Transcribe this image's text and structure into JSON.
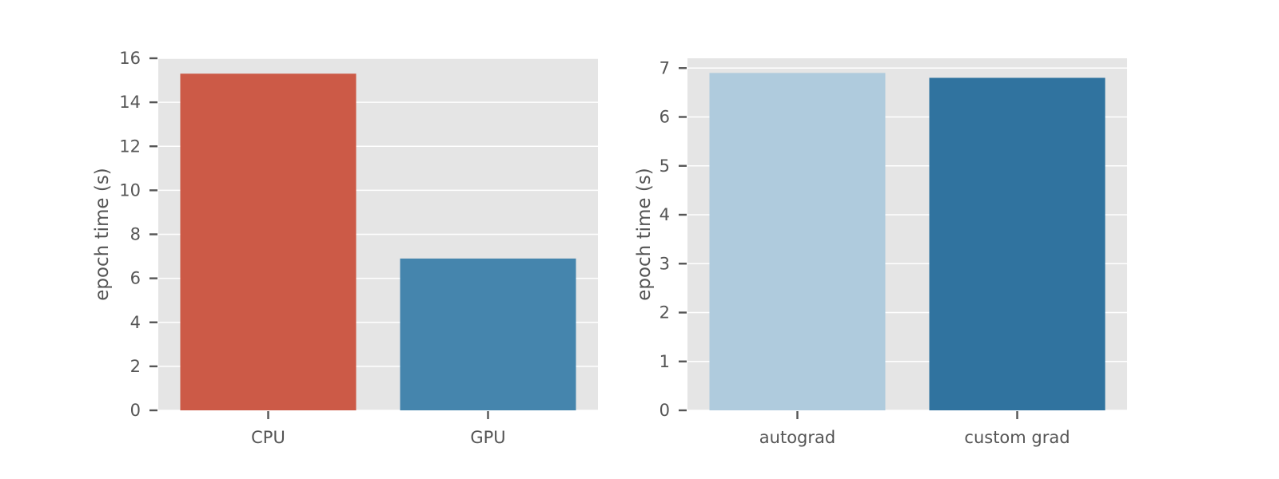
{
  "chart_data": [
    {
      "type": "bar",
      "categories": [
        "CPU",
        "GPU"
      ],
      "values": [
        15.3,
        6.9
      ],
      "colors": [
        "#cc5a47",
        "#4585ad"
      ],
      "ylabel": "epoch time (s)",
      "xlabel": "",
      "ylim": [
        0,
        16
      ],
      "yticks": [
        0,
        2,
        4,
        6,
        8,
        10,
        12,
        14,
        16
      ],
      "grid": true
    },
    {
      "type": "bar",
      "categories": [
        "autograd",
        "custom grad"
      ],
      "values": [
        6.9,
        6.8
      ],
      "colors": [
        "#afcbdd",
        "#30739f"
      ],
      "ylabel": "epoch time (s)",
      "xlabel": "",
      "ylim": [
        0,
        7.2
      ],
      "yticks": [
        0,
        1,
        2,
        3,
        4,
        5,
        6,
        7
      ],
      "grid": true
    }
  ]
}
